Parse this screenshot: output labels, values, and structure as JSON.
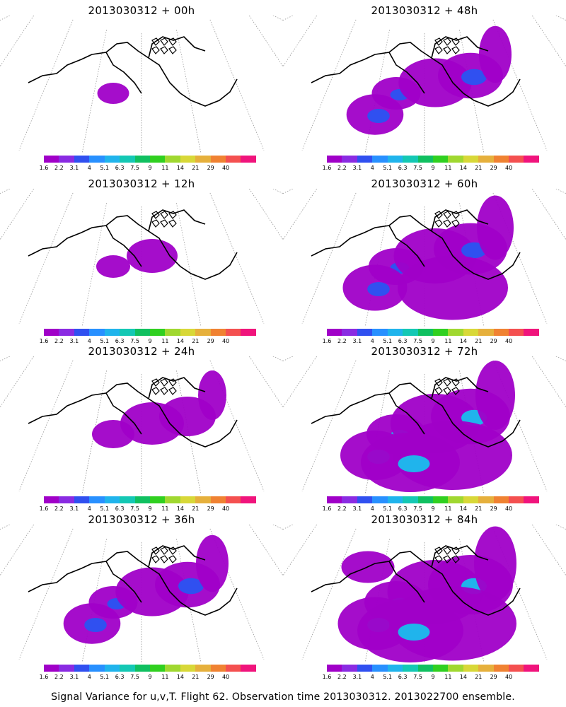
{
  "colorbar": {
    "labels": [
      "1.6",
      "2.2",
      "3.1",
      "4",
      "5.1",
      "6.3",
      "7.5",
      "9",
      "11",
      "14",
      "21",
      "29",
      "40"
    ],
    "colors": [
      "#a000c8",
      "#8a2be2",
      "#3050f0",
      "#2890ff",
      "#20b4ec",
      "#14c8b4",
      "#10c060",
      "#30d020",
      "#a0d830",
      "#d8d838",
      "#e6b03c",
      "#f08232",
      "#f45050",
      "#f0147c"
    ]
  },
  "panels": [
    {
      "title": "2013030312 + 00h",
      "column": "left",
      "row": 0,
      "coverage": 0.15
    },
    {
      "title": "2013030312 + 48h",
      "column": "right",
      "row": 0,
      "coverage": 0.55
    },
    {
      "title": "2013030312 + 12h",
      "column": "left",
      "row": 1,
      "coverage": 0.2
    },
    {
      "title": "2013030312 + 60h",
      "column": "right",
      "row": 1,
      "coverage": 0.7
    },
    {
      "title": "2013030312 + 24h",
      "column": "left",
      "row": 2,
      "coverage": 0.4
    },
    {
      "title": "2013030312 + 72h",
      "column": "right",
      "row": 2,
      "coverage": 0.8
    },
    {
      "title": "2013030312 + 36h",
      "column": "left",
      "row": 3,
      "coverage": 0.55
    },
    {
      "title": "2013030312 + 84h",
      "column": "right",
      "row": 3,
      "coverage": 0.9
    }
  ],
  "footer": "Signal Variance for u,v,T. Flight 62. Observation time 2013030312. 2013022700 ensemble."
}
